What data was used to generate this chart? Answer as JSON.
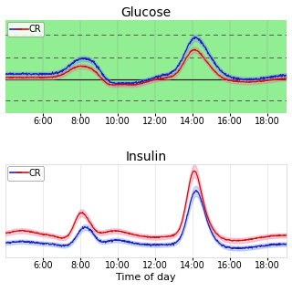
{
  "title_glucose": "Glucose",
  "title_insulin": "Insulin",
  "xlabel": "Time of day",
  "x_ticks": [
    360,
    480,
    600,
    720,
    840,
    960,
    1080
  ],
  "x_tick_labels": [
    "6:00",
    "8:00",
    "10:00",
    "12:00",
    "14:00",
    "16:00",
    "18:00"
  ],
  "x_min": 240,
  "x_max": 1140,
  "glucose_bg_color": "#92ee92",
  "line_blue": "#2222bb",
  "line_red": "#cc1111",
  "fill_blue": "#7799ee",
  "fill_red": "#ee7799",
  "title_fontsize": 10,
  "label_fontsize": 8,
  "tick_fontsize": 7
}
